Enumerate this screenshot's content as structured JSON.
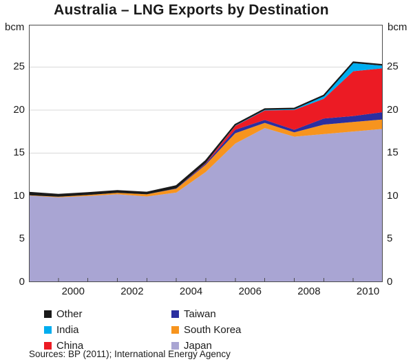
{
  "title": "Australia – LNG Exports by Destination",
  "axis": {
    "unit_left": "bcm",
    "unit_right": "bcm",
    "frame_color": "#4a4a4a",
    "grid_color": "#d8d8d8",
    "text_color": "#1a1a1a"
  },
  "source": "Sources: BP (2011); International Energy Agency",
  "legend": {
    "columns": [
      [
        {
          "label": "Other",
          "color": "#1a1a1a"
        },
        {
          "label": "India",
          "color": "#00adef"
        },
        {
          "label": "China",
          "color": "#ec1b24"
        }
      ],
      [
        {
          "label": "Taiwan",
          "color": "#2b2fa0"
        },
        {
          "label": "South Korea",
          "color": "#f7941e"
        },
        {
          "label": "Japan",
          "color": "#a9a5d3"
        }
      ]
    ]
  },
  "chart_data": {
    "type": "area",
    "stacked": true,
    "title": "Australia – LNG Exports by Destination",
    "xlabel": "",
    "ylabel": "bcm",
    "x": [
      1999,
      2000,
      2001,
      2002,
      2003,
      2004,
      2005,
      2006,
      2007,
      2008,
      2009,
      2010,
      2011
    ],
    "x_tick_label_years": [
      2000,
      2002,
      2004,
      2006,
      2008,
      2010
    ],
    "y_ticks": [
      0,
      5,
      10,
      15,
      20,
      25
    ],
    "ylim": [
      0,
      29.9
    ],
    "grid": "horizontal",
    "legend_position": "bottom",
    "top_line_color": "#1a1a1a",
    "series": [
      {
        "name": "Japan",
        "color": "#a9a5d3",
        "values": [
          10.05,
          9.85,
          10.0,
          10.2,
          9.95,
          10.4,
          12.8,
          16.1,
          17.9,
          16.9,
          17.2,
          17.5,
          17.8
        ]
      },
      {
        "name": "South Korea",
        "color": "#f7941e",
        "values": [
          0.05,
          0.07,
          0.12,
          0.18,
          0.25,
          0.45,
          0.85,
          1.2,
          0.6,
          0.5,
          1.1,
          1.1,
          1.1
        ]
      },
      {
        "name": "Taiwan",
        "color": "#2b2fa0",
        "values": [
          0,
          0,
          0,
          0,
          0,
          0.05,
          0.15,
          0.4,
          0.35,
          0.3,
          0.7,
          0.7,
          0.85
        ]
      },
      {
        "name": "China",
        "color": "#ec1b24",
        "values": [
          0,
          0,
          0,
          0,
          0,
          0,
          0.05,
          0.45,
          1.1,
          2.3,
          2.3,
          5.2,
          5.1
        ]
      },
      {
        "name": "India",
        "color": "#00adef",
        "values": [
          0,
          0,
          0,
          0,
          0,
          0,
          0,
          0.05,
          0.08,
          0.1,
          0.3,
          0.95,
          0.3
        ]
      },
      {
        "name": "Other",
        "color": "#1a1a1a",
        "values": [
          0.3,
          0.25,
          0.25,
          0.22,
          0.22,
          0.28,
          0.25,
          0.1,
          0.08,
          0.08,
          0.08,
          0.1,
          0.1
        ]
      }
    ]
  }
}
